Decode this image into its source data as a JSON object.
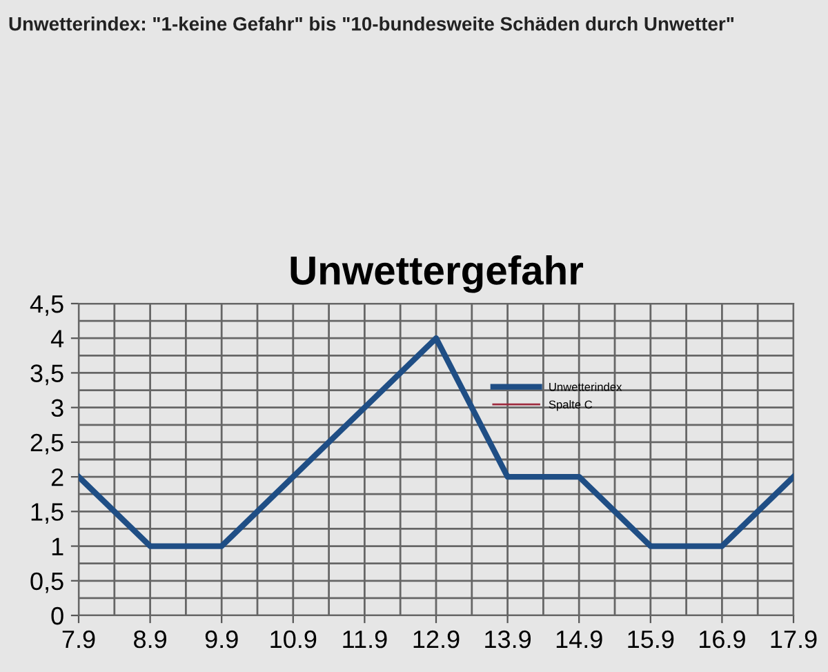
{
  "chart_data": {
    "type": "line",
    "title": "Unwettergefahr",
    "annotations": [
      "Unwetterindex: \"1-keine Gefahr\" bis \"10-bundesweite Schäden durch Unwetter\""
    ],
    "categories": [
      "7.9",
      "8.9",
      "9.9",
      "10.9",
      "11.9",
      "12.9",
      "13.9",
      "14.9",
      "15.9",
      "16.9",
      "17.9"
    ],
    "series": [
      {
        "name": "Unwetterindex",
        "color": "#1f4e85",
        "values": [
          2,
          1,
          1,
          2,
          3,
          4,
          2,
          2,
          1,
          1,
          2
        ]
      },
      {
        "name": "Spalte C",
        "color": "#9e2a3e",
        "values": [
          null,
          null,
          null,
          null,
          null,
          null,
          null,
          null,
          null,
          null,
          null
        ]
      }
    ],
    "ylim": [
      0,
      4.5
    ],
    "yticks": [
      {
        "value": 0,
        "label": "0"
      },
      {
        "value": 0.5,
        "label": "0,5"
      },
      {
        "value": 1,
        "label": "1"
      },
      {
        "value": 1.5,
        "label": "1,5"
      },
      {
        "value": 2,
        "label": "2"
      },
      {
        "value": 2.5,
        "label": "2,5"
      },
      {
        "value": 3,
        "label": "3"
      },
      {
        "value": 3.5,
        "label": "3,5"
      },
      {
        "value": 4,
        "label": "4"
      },
      {
        "value": 4.5,
        "label": "4,5"
      }
    ],
    "grid": true,
    "legend": "top",
    "marker": "none",
    "line_style": "solid"
  }
}
